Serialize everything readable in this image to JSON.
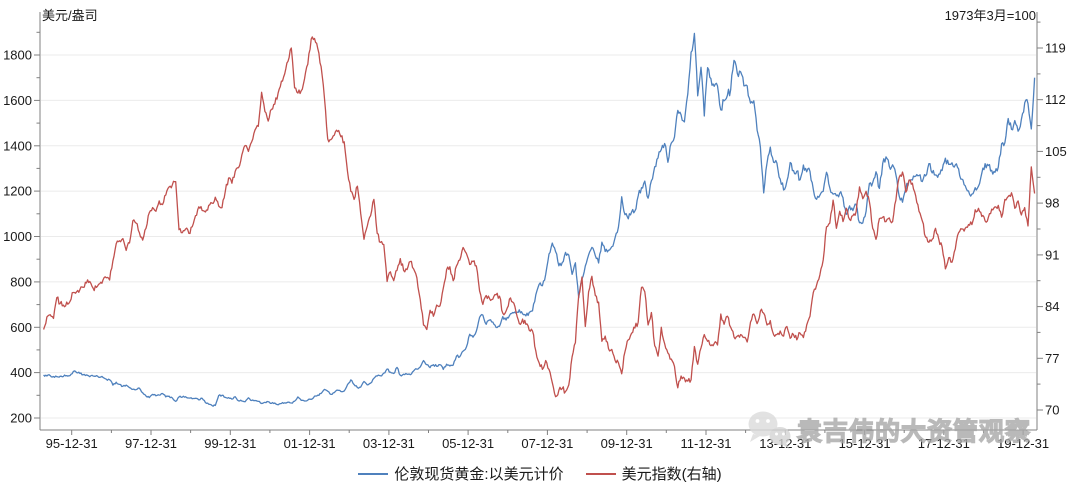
{
  "chart_data": {
    "type": "line",
    "left_axis_title": "美元/盎司",
    "right_axis_note": "1973年3月=100",
    "axis_color": "#808080",
    "gridline_color": "#ebebeb",
    "tick_label_color": "#1a1a1a",
    "left_axis": {
      "label_ticks": [
        200,
        400,
        600,
        800,
        1000,
        1200,
        1400,
        1600,
        1800
      ],
      "minor_step": 100,
      "min": 200,
      "max": 1900
    },
    "right_axis": {
      "label_ticks": [
        70,
        77,
        84,
        91,
        98,
        105,
        112,
        119
      ],
      "minor_step": 3.5,
      "min": 70,
      "max": 122.5
    },
    "x_ticks": [
      {
        "year": 1996,
        "label": "95-12-31"
      },
      {
        "year": 1998,
        "label": "97-12-31"
      },
      {
        "year": 2000,
        "label": "99-12-31"
      },
      {
        "year": 2002,
        "label": "01-12-31"
      },
      {
        "year": 2004,
        "label": "03-12-31"
      },
      {
        "year": 2006,
        "label": "05-12-31"
      },
      {
        "year": 2008,
        "label": "07-12-31"
      },
      {
        "year": 2010,
        "label": "09-12-31"
      },
      {
        "year": 2012,
        "label": "11-12-31"
      },
      {
        "year": 2014,
        "label": "13-12-31"
      },
      {
        "year": 2016,
        "label": "15-12-31"
      },
      {
        "year": 2018,
        "label": "17-12-31"
      },
      {
        "year": 2020,
        "label": "19-12-31"
      }
    ],
    "x_start": 1995.29,
    "x_step_years": 0.083333,
    "series": [
      {
        "id": "gold",
        "name": "伦敦现货黄金:以美元计价",
        "axis": "left",
        "color": "#4f81bd",
        "values": [
          390,
          385,
          387,
          383,
          382,
          384,
          383,
          387,
          387,
          405,
          400,
          396,
          391,
          390,
          382,
          385,
          387,
          379,
          379,
          371,
          369,
          345,
          358,
          348,
          340,
          345,
          334,
          326,
          325,
          332,
          311,
          297,
          290,
          304,
          298,
          301,
          308,
          293,
          296,
          288,
          273,
          293,
          292,
          294,
          288,
          285,
          287,
          280,
          287,
          268,
          261,
          255,
          255,
          299,
          300,
          291,
          290,
          283,
          294,
          276,
          275,
          272,
          289,
          277,
          277,
          273,
          264,
          269,
          272,
          265,
          266,
          258,
          264,
          267,
          270,
          266,
          274,
          293,
          278,
          275,
          279,
          282,
          296,
          301,
          308,
          326,
          318,
          304,
          312,
          323,
          317,
          319,
          347,
          368,
          347,
          334,
          336,
          361,
          346,
          354,
          375,
          385,
          386,
          398,
          416,
          402,
          396,
          423,
          388,
          393,
          393,
          391,
          407,
          415,
          425,
          453,
          435,
          422,
          435,
          428,
          435,
          414,
          437,
          429,
          433,
          473,
          470,
          495,
          513,
          569,
          556,
          582,
          644,
          653,
          613,
          632,
          623,
          599,
          604,
          647,
          632,
          651,
          665,
          662,
          677,
          659,
          650,
          665,
          672,
          743,
          789,
          783,
          833,
          923,
          971,
          933,
          871,
          885,
          930,
          918,
          833,
          884,
          730,
          814,
          870,
          919,
          952,
          916,
          883,
          975,
          934,
          939,
          955,
          995,
          1040,
          1175,
          1096,
          1078,
          1108,
          1113,
          1179,
          1215,
          1244,
          1169,
          1246,
          1307,
          1346,
          1383,
          1410,
          1327,
          1411,
          1439,
          1556,
          1536,
          1505,
          1628,
          1813,
          1895,
          1620,
          1746,
          1531,
          1744,
          1696,
          1662,
          1664,
          1558,
          1598,
          1622,
          1648,
          1776,
          1719,
          1726,
          1664,
          1664,
          1588,
          1598,
          1469,
          1394,
          1192,
          1323,
          1394,
          1327,
          1324,
          1253,
          1205,
          1244,
          1326,
          1291,
          1288,
          1250,
          1315,
          1285,
          1287,
          1208,
          1164,
          1182,
          1199,
          1283,
          1214,
          1187,
          1180,
          1191,
          1171,
          1098,
          1135,
          1114,
          1142,
          1061,
          1060,
          1111,
          1234,
          1237,
          1285,
          1212,
          1322,
          1351,
          1309,
          1316,
          1272,
          1178,
          1151,
          1210,
          1249,
          1249,
          1266,
          1269,
          1242,
          1267,
          1321,
          1280,
          1271,
          1275,
          1291,
          1345,
          1318,
          1325,
          1315,
          1298,
          1253,
          1224,
          1201,
          1187,
          1215,
          1222,
          1279,
          1321,
          1313,
          1292,
          1283,
          1306,
          1409,
          1414,
          1520,
          1472,
          1511,
          1464,
          1517,
          1589,
          1586,
          1474,
          1700
        ]
      },
      {
        "id": "usd-index",
        "name": "美元指数(右轴)",
        "axis": "right",
        "color": "#c0504d",
        "values": [
          80.9,
          82.6,
          82.9,
          82.4,
          85.2,
          84.4,
          84.2,
          84.6,
          84.7,
          85.9,
          86.0,
          86.3,
          86.6,
          87.2,
          87.4,
          86.5,
          86.6,
          87.1,
          87.6,
          87.9,
          87.6,
          90.2,
          92.5,
          92.9,
          93.2,
          91.6,
          92.6,
          95.6,
          95.3,
          94.0,
          93.0,
          94.6,
          96.7,
          97.4,
          96.9,
          98.3,
          97.8,
          99.1,
          100.2,
          100.5,
          100.9,
          94.4,
          94.0,
          94.5,
          93.9,
          94.8,
          96.3,
          97.5,
          97.0,
          96.8,
          97.7,
          98.0,
          98.8,
          97.6,
          97.4,
          99.6,
          101.4,
          100.7,
          102.3,
          102.8,
          104.5,
          105.8,
          105.0,
          106.3,
          107.9,
          108.4,
          113.0,
          110.4,
          109.1,
          110.7,
          111.4,
          112.9,
          114.5,
          115.5,
          117.2,
          119.0,
          113.6,
          112.9,
          113.2,
          114.8,
          116.8,
          120.2,
          120.3,
          118.9,
          116.5,
          112.3,
          106.7,
          106.6,
          107.2,
          107.7,
          107.0,
          106.3,
          102.3,
          99.6,
          98.5,
          100.3,
          96.6,
          93.1,
          94.9,
          96.3,
          98.5,
          93.9,
          92.7,
          92.4,
          87.4,
          88.7,
          87.5,
          88.9,
          90.5,
          88.9,
          89.0,
          90.1,
          89.1,
          87.9,
          85.0,
          81.5,
          80.9,
          83.5,
          82.7,
          84.2,
          84.1,
          86.5,
          89.0,
          89.4,
          87.5,
          89.5,
          90.3,
          92.0,
          91.2,
          89.7,
          90.1,
          89.5,
          86.1,
          84.3,
          85.5,
          85.1,
          85.0,
          85.6,
          85.4,
          83.1,
          83.4,
          85.0,
          84.6,
          83.3,
          81.7,
          82.3,
          81.6,
          80.8,
          80.7,
          78.0,
          76.4,
          75.5,
          76.7,
          75.5,
          73.7,
          71.8,
          72.7,
          72.9,
          72.5,
          73.4,
          77.2,
          79.1,
          85.5,
          88.0,
          81.3,
          86.0,
          88.1,
          85.5,
          84.6,
          79.3,
          80.0,
          78.3,
          78.2,
          76.7,
          76.4,
          74.9,
          77.9,
          79.5,
          80.4,
          81.1,
          81.9,
          86.6,
          86.0,
          81.5,
          83.2,
          78.7,
          77.3,
          81.2,
          79.0,
          77.7,
          76.9,
          75.9,
          73.0,
          74.6,
          74.3,
          73.9,
          74.1,
          78.6,
          76.2,
          78.4,
          80.2,
          79.3,
          78.7,
          79.0,
          78.8,
          83.0,
          81.6,
          82.7,
          81.2,
          79.9,
          80.0,
          80.2,
          79.8,
          79.2,
          81.9,
          83.0,
          81.7,
          83.4,
          83.1,
          81.5,
          82.1,
          80.2,
          80.2,
          80.7,
          80.0,
          81.3,
          79.7,
          80.2,
          79.5,
          80.4,
          79.8,
          81.5,
          82.7,
          85.9,
          86.9,
          88.3,
          90.3,
          94.8,
          95.3,
          98.4,
          94.6,
          96.9,
          95.5,
          97.3,
          95.8,
          96.3,
          96.9,
          100.2,
          98.6,
          99.6,
          98.2,
          94.6,
          93.1,
          95.9,
          96.1,
          95.5,
          96.0,
          95.5,
          98.4,
          101.5,
          102.2,
          99.5,
          101.1,
          100.7,
          99.0,
          96.9,
          95.6,
          93.4,
          92.7,
          93.1,
          94.6,
          93.1,
          92.1,
          89.1,
          90.6,
          90.0,
          91.8,
          94.0,
          94.5,
          94.6,
          95.1,
          95.1,
          97.1,
          97.3,
          96.2,
          95.6,
          96.1,
          97.2,
          97.5,
          97.7,
          96.1,
          98.5,
          98.9,
          99.4,
          97.3,
          98.3,
          96.4,
          97.4,
          94.9,
          102.9,
          99.3
        ]
      }
    ],
    "legend_position": "bottom-center",
    "grid": "horizontal-only"
  },
  "watermark": {
    "text": "袁吉伟的大资管观察",
    "icon": "wechat-icon"
  }
}
